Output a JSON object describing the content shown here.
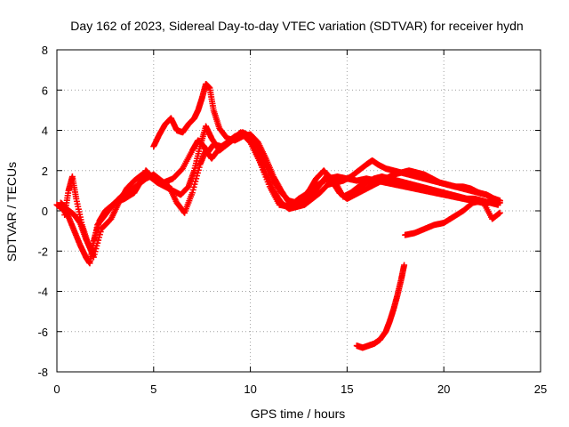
{
  "chart_data": {
    "type": "scatter",
    "title": "Day 162 of 2023, Sidereal Day-to-day VTEC variation (SDTVAR) for receiver hydn",
    "xlabel": "GPS time / hours",
    "ylabel": "SDTVAR / TECUs",
    "xlim": [
      0,
      25
    ],
    "ylim": [
      -8,
      8
    ],
    "xticks": [
      0,
      5,
      10,
      15,
      20,
      25
    ],
    "yticks": [
      -8,
      -6,
      -4,
      -2,
      0,
      2,
      4,
      6,
      8
    ],
    "grid": true,
    "marker": "+",
    "color": "#ff0000",
    "series": [
      {
        "name": "trace-a",
        "x": [
          0.0,
          0.3,
          0.6,
          0.9,
          1.2,
          1.5,
          1.7,
          1.9,
          2.2,
          2.5,
          3.0,
          3.5,
          4.0,
          4.3,
          4.6,
          5.0,
          5.5,
          6.0,
          6.5,
          7.0,
          7.3,
          7.6,
          7.8,
          8.1,
          8.5,
          9.0,
          9.5,
          10.0,
          10.5,
          11.0,
          11.5,
          12.0,
          12.5,
          13.0,
          13.5,
          14.0,
          14.5,
          15.0,
          15.5,
          16.0,
          16.5,
          17.0,
          17.5,
          18.0,
          18.5,
          19.0,
          19.5,
          20.0,
          20.5,
          21.0,
          21.5,
          22.0,
          22.5,
          22.9
        ],
        "y": [
          0.3,
          0.1,
          -0.3,
          -1.0,
          -1.7,
          -2.3,
          -2.6,
          -1.5,
          -0.5,
          0.0,
          0.4,
          0.6,
          0.9,
          1.4,
          2.0,
          1.6,
          1.4,
          1.6,
          2.1,
          3.0,
          3.5,
          3.2,
          2.9,
          3.3,
          3.2,
          3.5,
          3.9,
          3.4,
          2.4,
          1.2,
          0.3,
          0.2,
          0.6,
          0.9,
          1.3,
          1.6,
          1.7,
          1.6,
          1.5,
          1.6,
          1.5,
          1.4,
          1.3,
          1.2,
          1.1,
          1.0,
          0.9,
          0.8,
          0.7,
          0.6,
          0.5,
          0.4,
          0.4,
          0.4
        ]
      },
      {
        "name": "trace-b",
        "x": [
          0.4,
          0.6,
          0.8,
          1.0,
          1.3,
          1.6,
          1.9,
          2.3,
          2.8,
          3.2,
          3.6,
          4.0,
          4.4,
          4.8,
          5.2,
          5.6,
          6.0,
          6.4,
          6.8,
          7.1,
          7.4,
          7.7,
          8.0,
          8.4,
          8.8,
          9.2,
          9.6,
          10.0,
          10.4,
          10.8,
          11.2,
          11.6,
          12.0,
          12.4,
          12.8,
          13.1,
          13.4,
          13.8,
          14.2,
          14.6,
          15.0,
          15.4,
          15.8,
          16.2,
          16.6,
          17.0,
          17.4,
          17.8,
          18.2,
          18.6,
          19.0,
          19.4,
          19.8,
          20.2,
          20.6,
          21.0,
          21.4,
          21.8,
          22.2,
          22.6,
          22.9
        ],
        "y": [
          -0.2,
          1.0,
          1.7,
          0.6,
          -0.7,
          -1.6,
          -2.3,
          -0.9,
          -0.4,
          0.4,
          1.1,
          1.5,
          1.8,
          1.7,
          1.4,
          1.2,
          1.0,
          0.8,
          1.2,
          2.0,
          3.2,
          4.2,
          3.6,
          3.0,
          3.3,
          3.6,
          3.9,
          3.7,
          3.1,
          2.3,
          1.5,
          0.9,
          0.5,
          0.4,
          0.7,
          1.1,
          1.6,
          2.0,
          1.5,
          0.9,
          0.6,
          0.8,
          1.0,
          1.2,
          1.4,
          1.6,
          1.8,
          1.9,
          2.0,
          1.9,
          1.8,
          1.6,
          1.4,
          1.3,
          1.2,
          1.1,
          1.0,
          0.9,
          0.8,
          0.6,
          0.5
        ]
      },
      {
        "name": "trace-c",
        "x": [
          0.2,
          0.5,
          0.9,
          1.2,
          1.5,
          1.8,
          2.1,
          2.5,
          2.9,
          3.3,
          3.8,
          4.2,
          4.6,
          5.0,
          5.4,
          5.8,
          6.2,
          6.6,
          7.0,
          7.4,
          7.7,
          8.0,
          8.4,
          8.8,
          9.2,
          9.6,
          10.0,
          10.4,
          10.8,
          11.2,
          11.6,
          12.0,
          12.4,
          12.8,
          13.2,
          13.6,
          14.0,
          14.4,
          14.8,
          15.2,
          15.6,
          16.0,
          16.4,
          16.8,
          17.2,
          17.6,
          18.0,
          18.4,
          18.8,
          19.2,
          19.6,
          20.0,
          20.4,
          20.8,
          21.2,
          21.6,
          22.0,
          22.4,
          22.8
        ],
        "y": [
          0.4,
          0.1,
          -0.2,
          -0.6,
          -1.4,
          -2.0,
          -0.7,
          -0.2,
          0.3,
          0.7,
          1.0,
          1.3,
          1.6,
          1.8,
          1.5,
          1.2,
          0.4,
          -0.1,
          0.9,
          2.3,
          3.0,
          2.6,
          3.1,
          3.4,
          3.7,
          3.8,
          3.5,
          2.7,
          1.8,
          1.0,
          0.4,
          0.1,
          0.2,
          0.5,
          0.8,
          1.3,
          1.8,
          1.4,
          0.7,
          0.9,
          1.2,
          1.4,
          1.6,
          1.7,
          1.6,
          1.5,
          1.4,
          1.3,
          1.2,
          1.1,
          1.0,
          0.9,
          0.8,
          0.7,
          0.6,
          0.6,
          0.5,
          0.4,
          0.3
        ]
      },
      {
        "name": "trace-d",
        "x": [
          5.0,
          5.3,
          5.6,
          5.9,
          6.2,
          6.5,
          6.8,
          7.1,
          7.3,
          7.5,
          7.7,
          7.9,
          8.1,
          8.4,
          8.8,
          9.2,
          9.6,
          10.0,
          10.4,
          10.8,
          11.2,
          11.6,
          12.0,
          12.4,
          12.8,
          13.2,
          13.6,
          14.0,
          14.4,
          14.8,
          15.2,
          15.6,
          16.0,
          16.3,
          16.6,
          17.0,
          17.4,
          17.8,
          18.2,
          18.6,
          19.0,
          19.4,
          19.8,
          20.2,
          20.6,
          21.0,
          21.4,
          21.8,
          22.2,
          22.6,
          22.9
        ],
        "y": [
          3.2,
          3.8,
          4.3,
          4.6,
          4.0,
          3.9,
          4.3,
          4.6,
          5.0,
          5.6,
          6.3,
          6.1,
          5.0,
          4.1,
          3.6,
          3.5,
          3.7,
          3.8,
          3.4,
          2.6,
          1.7,
          1.0,
          0.4,
          0.2,
          0.3,
          0.6,
          0.9,
          1.3,
          1.4,
          1.5,
          1.7,
          2.0,
          2.3,
          2.5,
          2.3,
          2.1,
          2.0,
          1.9,
          1.8,
          1.7,
          1.6,
          1.5,
          1.4,
          1.3,
          1.2,
          1.2,
          1.1,
          0.9,
          0.8,
          0.6,
          0.5
        ]
      },
      {
        "name": "trace-e",
        "x": [
          18.0,
          18.5,
          19.0,
          19.5,
          20.0,
          20.5,
          21.0,
          21.5,
          22.0,
          22.5,
          22.9
        ],
        "y": [
          -1.2,
          -1.1,
          -0.9,
          -0.7,
          -0.6,
          -0.3,
          0.0,
          0.4,
          0.5,
          -0.4,
          -0.1
        ]
      },
      {
        "name": "trace-f",
        "x": [
          15.5,
          15.8,
          16.1,
          16.4,
          16.7,
          17.0,
          17.2,
          17.4,
          17.6,
          17.8,
          17.95
        ],
        "y": [
          -6.7,
          -6.8,
          -6.7,
          -6.6,
          -6.4,
          -6.0,
          -5.5,
          -4.9,
          -4.2,
          -3.4,
          -2.7
        ]
      }
    ]
  }
}
